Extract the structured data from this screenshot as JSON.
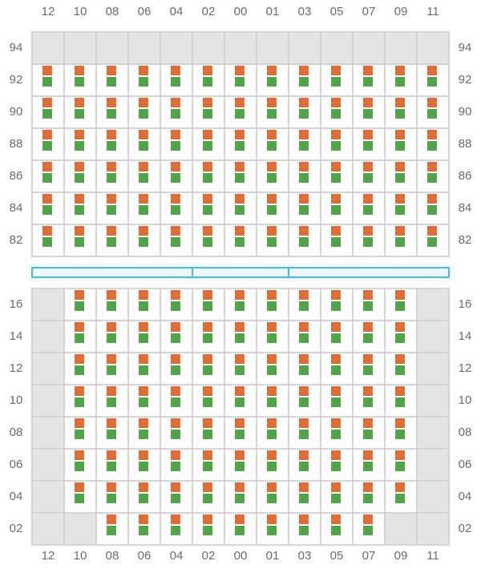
{
  "columns": [
    "12",
    "10",
    "08",
    "06",
    "04",
    "02",
    "00",
    "01",
    "03",
    "05",
    "07",
    "09",
    "11"
  ],
  "top_section": {
    "rows": [
      "94",
      "92",
      "90",
      "88",
      "86",
      "84",
      "82"
    ],
    "unavailable": {
      "94": [
        "12",
        "10",
        "08",
        "06",
        "04",
        "02",
        "00",
        "01",
        "03",
        "05",
        "07",
        "09",
        "11"
      ]
    }
  },
  "bottom_section": {
    "rows": [
      "16",
      "14",
      "12",
      "10",
      "08",
      "06",
      "04",
      "02"
    ],
    "unavailable": {
      "16": [
        "12",
        "11"
      ],
      "14": [
        "12",
        "11"
      ],
      "12": [
        "12",
        "11"
      ],
      "10": [
        "12",
        "11"
      ],
      "08": [
        "12",
        "11"
      ],
      "06": [
        "12",
        "11"
      ],
      "04": [
        "12",
        "11"
      ],
      "02": [
        "12",
        "10",
        "09",
        "11"
      ]
    }
  },
  "divider_segments": 3,
  "colors": {
    "slot_top": "#e06c37",
    "slot_bottom": "#52a44a",
    "unavailable": "#e4e4e7",
    "divider": "#38bdf8"
  }
}
